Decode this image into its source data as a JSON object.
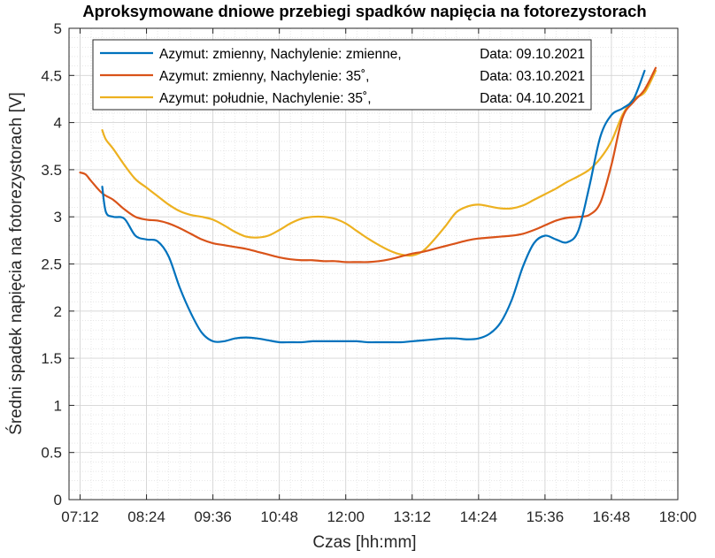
{
  "chart_data": {
    "type": "line",
    "title": "Aproksymowane dniowe przebiegi spadków napięcia na fotorezystorach",
    "xlabel": "Czas [hh:mm]",
    "ylabel": "Średni spadek napięcia na fotorezystorach [V]",
    "x_unit": "hh:mm",
    "xlim": [
      "07:00",
      "18:00"
    ],
    "ylim": [
      0,
      5
    ],
    "xticks": [
      "07:12",
      "08:24",
      "09:36",
      "10:48",
      "12:00",
      "13:12",
      "14:24",
      "15:36",
      "16:48",
      "18:00"
    ],
    "yticks": [
      "0",
      "0.5",
      "1",
      "1.5",
      "2",
      "2.5",
      "3",
      "3.5",
      "4",
      "4.5",
      "5"
    ],
    "grid": "major and minor",
    "legend_position": "top-left",
    "series": [
      {
        "name": "Azymut: zmienny, Nachylenie: zmienne,",
        "date_label": "Data: 09.10.2021",
        "color": "#0072BD",
        "x": [
          "07:36",
          "07:40",
          "07:48",
          "08:00",
          "08:12",
          "08:24",
          "08:36",
          "08:48",
          "09:00",
          "09:12",
          "09:24",
          "09:36",
          "09:48",
          "10:00",
          "10:12",
          "10:24",
          "10:36",
          "10:48",
          "11:00",
          "11:12",
          "11:24",
          "11:36",
          "11:48",
          "12:00",
          "12:12",
          "12:24",
          "12:36",
          "12:48",
          "13:00",
          "13:12",
          "13:24",
          "13:36",
          "13:48",
          "14:00",
          "14:12",
          "14:24",
          "14:36",
          "14:48",
          "15:00",
          "15:12",
          "15:24",
          "15:36",
          "15:48",
          "16:00",
          "16:12",
          "16:24",
          "16:36",
          "16:48",
          "17:00",
          "17:12",
          "17:24"
        ],
        "y": [
          3.32,
          3.05,
          3.0,
          2.98,
          2.8,
          2.76,
          2.74,
          2.58,
          2.25,
          1.98,
          1.77,
          1.68,
          1.68,
          1.71,
          1.72,
          1.71,
          1.69,
          1.67,
          1.67,
          1.67,
          1.68,
          1.68,
          1.68,
          1.68,
          1.68,
          1.67,
          1.67,
          1.67,
          1.67,
          1.68,
          1.69,
          1.7,
          1.71,
          1.71,
          1.7,
          1.71,
          1.76,
          1.88,
          2.12,
          2.47,
          2.72,
          2.8,
          2.76,
          2.73,
          2.85,
          3.32,
          3.85,
          4.08,
          4.15,
          4.25,
          4.55
        ]
      },
      {
        "name": "Azymut: zmienny, Nachylenie: 35˚,",
        "date_label": "Data: 03.10.2021",
        "color": "#D95319",
        "x": [
          "07:12",
          "07:18",
          "07:24",
          "07:36",
          "07:48",
          "08:00",
          "08:12",
          "08:24",
          "08:36",
          "08:48",
          "09:00",
          "09:12",
          "09:24",
          "09:36",
          "09:48",
          "10:00",
          "10:12",
          "10:24",
          "10:36",
          "10:48",
          "11:00",
          "11:12",
          "11:24",
          "11:36",
          "11:48",
          "12:00",
          "12:12",
          "12:24",
          "12:36",
          "12:48",
          "13:00",
          "13:12",
          "13:24",
          "13:36",
          "13:48",
          "14:00",
          "14:12",
          "14:24",
          "14:36",
          "14:48",
          "15:00",
          "15:12",
          "15:24",
          "15:36",
          "15:48",
          "16:00",
          "16:12",
          "16:24",
          "16:36",
          "16:48",
          "17:00",
          "17:12",
          "17:24",
          "17:36"
        ],
        "y": [
          3.47,
          3.45,
          3.38,
          3.25,
          3.18,
          3.08,
          3.0,
          2.97,
          2.96,
          2.93,
          2.88,
          2.82,
          2.76,
          2.72,
          2.7,
          2.68,
          2.66,
          2.63,
          2.6,
          2.57,
          2.55,
          2.54,
          2.54,
          2.53,
          2.53,
          2.52,
          2.52,
          2.52,
          2.53,
          2.55,
          2.58,
          2.61,
          2.63,
          2.66,
          2.69,
          2.72,
          2.75,
          2.77,
          2.78,
          2.79,
          2.8,
          2.82,
          2.86,
          2.91,
          2.96,
          2.99,
          3.0,
          3.02,
          3.15,
          3.55,
          4.05,
          4.22,
          4.35,
          4.58
        ]
      },
      {
        "name": "Azymut: południe, Nachylenie: 35˚,",
        "date_label": "Data: 04.10.2021",
        "color": "#EDB120",
        "x": [
          "07:36",
          "07:40",
          "07:48",
          "08:00",
          "08:12",
          "08:24",
          "08:36",
          "08:48",
          "09:00",
          "09:12",
          "09:24",
          "09:36",
          "09:48",
          "10:00",
          "10:12",
          "10:24",
          "10:36",
          "10:48",
          "11:00",
          "11:12",
          "11:24",
          "11:36",
          "11:48",
          "12:00",
          "12:12",
          "12:24",
          "12:36",
          "12:48",
          "13:00",
          "13:12",
          "13:24",
          "13:36",
          "13:48",
          "14:00",
          "14:12",
          "14:24",
          "14:36",
          "14:48",
          "15:00",
          "15:12",
          "15:24",
          "15:36",
          "15:48",
          "16:00",
          "16:12",
          "16:24",
          "16:36",
          "16:48",
          "17:00",
          "17:12",
          "17:24",
          "17:36"
        ],
        "y": [
          3.92,
          3.82,
          3.72,
          3.55,
          3.4,
          3.31,
          3.22,
          3.13,
          3.06,
          3.02,
          3.0,
          2.97,
          2.91,
          2.84,
          2.79,
          2.78,
          2.8,
          2.86,
          2.93,
          2.98,
          3.0,
          3.0,
          2.98,
          2.93,
          2.85,
          2.77,
          2.7,
          2.64,
          2.6,
          2.59,
          2.64,
          2.76,
          2.9,
          3.05,
          3.11,
          3.13,
          3.11,
          3.09,
          3.09,
          3.12,
          3.18,
          3.24,
          3.3,
          3.37,
          3.43,
          3.5,
          3.62,
          3.8,
          4.08,
          4.25,
          4.32,
          4.55
        ]
      }
    ]
  }
}
